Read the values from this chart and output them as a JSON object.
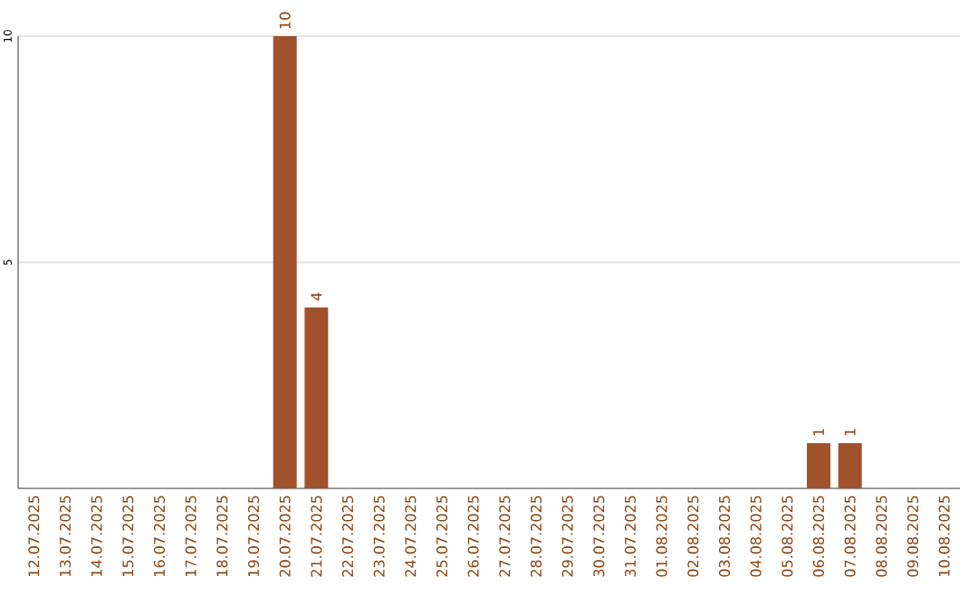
{
  "chart_data": {
    "type": "bar",
    "categories": [
      "12.07.2025",
      "13.07.2025",
      "14.07.2025",
      "15.07.2025",
      "16.07.2025",
      "17.07.2025",
      "18.07.2025",
      "19.07.2025",
      "20.07.2025",
      "21.07.2025",
      "22.07.2025",
      "23.07.2025",
      "24.07.2025",
      "25.07.2025",
      "26.07.2025",
      "27.07.2025",
      "28.07.2025",
      "29.07.2025",
      "30.07.2025",
      "31.07.2025",
      "01.08.2025",
      "02.08.2025",
      "03.08.2025",
      "04.08.2025",
      "05.08.2025",
      "06.08.2025",
      "07.08.2025",
      "08.08.2025",
      "09.08.2025",
      "10.08.2025"
    ],
    "values": [
      0,
      0,
      0,
      0,
      0,
      0,
      0,
      0,
      10,
      4,
      0,
      0,
      0,
      0,
      0,
      0,
      0,
      0,
      0,
      0,
      0,
      0,
      0,
      0,
      0,
      1,
      1,
      0,
      0,
      0
    ],
    "value_labels": [
      null,
      null,
      null,
      null,
      null,
      null,
      null,
      null,
      "10",
      "4",
      null,
      null,
      null,
      null,
      null,
      null,
      null,
      null,
      null,
      null,
      null,
      null,
      null,
      null,
      null,
      "1",
      "1",
      null,
      null,
      null
    ],
    "color": "#a0522d",
    "ylim": [
      0,
      10
    ],
    "yticks": [
      5,
      10
    ],
    "grid": "y"
  }
}
